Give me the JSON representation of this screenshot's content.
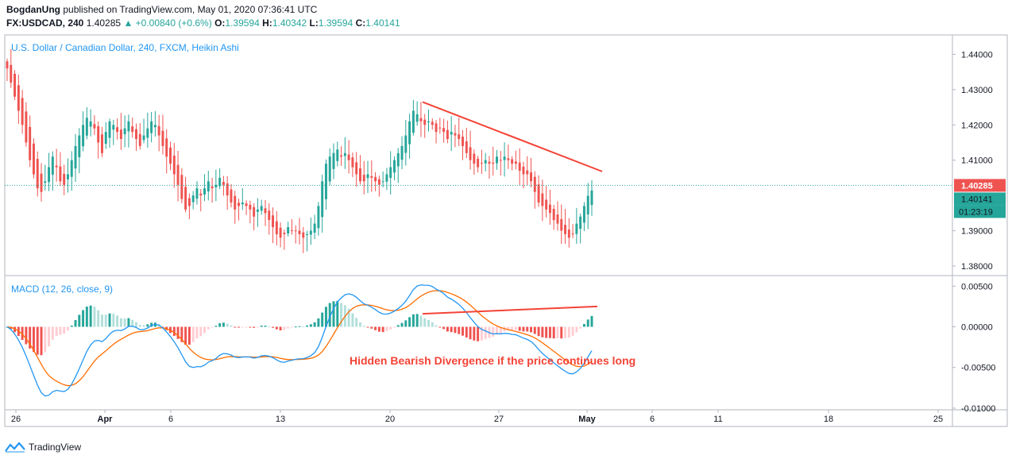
{
  "header": {
    "author": "BogdanUng",
    "published": "published on TradingView.com, May 01, 2020 07:36:41 UTC",
    "symbol": "FX:USDCAD, 240",
    "last": "1.40285",
    "change": "▲ +0.00840 (+0.6%)",
    "o_label": "O:",
    "o": "1.39594",
    "h_label": "H:",
    "h": "1.40342",
    "l_label": "L:",
    "l": "1.39594",
    "c_label": "C:",
    "c": "1.40141"
  },
  "footer": {
    "brand": "TradingView"
  },
  "colors": {
    "bull": "#26a69a",
    "bear": "#ef5350",
    "bull_light": "#b2dfdb",
    "bear_light": "#ffcdd2",
    "macd": "#2196f3",
    "signal": "#ff6d00",
    "trend": "#f44336",
    "title": "#2196f3"
  },
  "chart_data": [
    {
      "type": "candlestick",
      "title": "U.S. Dollar / Canadian Dollar, 240, FXCM, Heikin Ashi",
      "y_ticks": [
        "1.44000",
        "1.43000",
        "1.42000",
        "1.41000",
        "1.39000",
        "1.38000"
      ],
      "ylim": [
        1.3775,
        1.4455
      ],
      "price_labels": {
        "last": "1.40285",
        "close": "1.40141",
        "timer": "01:23:19"
      },
      "x_ticks": [
        "26",
        "Apr",
        "6",
        "13",
        "20",
        "27",
        "May",
        "6",
        "11",
        "18",
        "25"
      ],
      "trendline": {
        "start": 1.4265,
        "end": 1.4068
      },
      "path": [
        1.436,
        1.432,
        1.428,
        1.424,
        1.42,
        1.415,
        1.41,
        1.406,
        1.402,
        1.401,
        1.404,
        1.408,
        1.411,
        1.408,
        1.404,
        1.403,
        1.406,
        1.41,
        1.414,
        1.417,
        1.42,
        1.422,
        1.421,
        1.419,
        1.415,
        1.412,
        1.418,
        1.421,
        1.42,
        1.418,
        1.416,
        1.419,
        1.421,
        1.418,
        1.416,
        1.414,
        1.417,
        1.419,
        1.421,
        1.42,
        1.417,
        1.414,
        1.411,
        1.409,
        1.406,
        1.403,
        1.399,
        1.396,
        1.397,
        1.4,
        1.402,
        1.4,
        1.402,
        1.404,
        1.402,
        1.403,
        1.405,
        1.403,
        1.4,
        1.398,
        1.396,
        1.397,
        1.398,
        1.397,
        1.396,
        1.394,
        1.396,
        1.397,
        1.395,
        1.393,
        1.391,
        1.389,
        1.388,
        1.389,
        1.391,
        1.39,
        1.39,
        1.389,
        1.388,
        1.389,
        1.39,
        1.392,
        1.397,
        1.404,
        1.409,
        1.411,
        1.412,
        1.413,
        1.411,
        1.412,
        1.41,
        1.408,
        1.406,
        1.404,
        1.404,
        1.406,
        1.405,
        1.404,
        1.403,
        1.404,
        1.406,
        1.408,
        1.41,
        1.412,
        1.414,
        1.417,
        1.421,
        1.424,
        1.423,
        1.421,
        1.42,
        1.421,
        1.42,
        1.418,
        1.419,
        1.418,
        1.416,
        1.418,
        1.417,
        1.416,
        1.414,
        1.412,
        1.41,
        1.409,
        1.408,
        1.409,
        1.41,
        1.409,
        1.409,
        1.411,
        1.41,
        1.411,
        1.41,
        1.409,
        1.409,
        1.407,
        1.406,
        1.406,
        1.404,
        1.401,
        1.398,
        1.397,
        1.396,
        1.395,
        1.393,
        1.392,
        1.39,
        1.389,
        1.388,
        1.389,
        1.392,
        1.394,
        1.397,
        1.3999,
        1.4014
      ]
    },
    {
      "type": "macd",
      "title": "MACD (12, 26, close, 9)",
      "y_ticks": [
        "0.00500",
        "0.00000",
        "-0.00500",
        "-0.01000"
      ],
      "ylim": [
        -0.0102,
        0.0062
      ],
      "annotation": "Hidden Bearish Divergence if the price continues long",
      "divergence_line": {
        "start": 0.0016,
        "end": 0.0025
      }
    }
  ]
}
